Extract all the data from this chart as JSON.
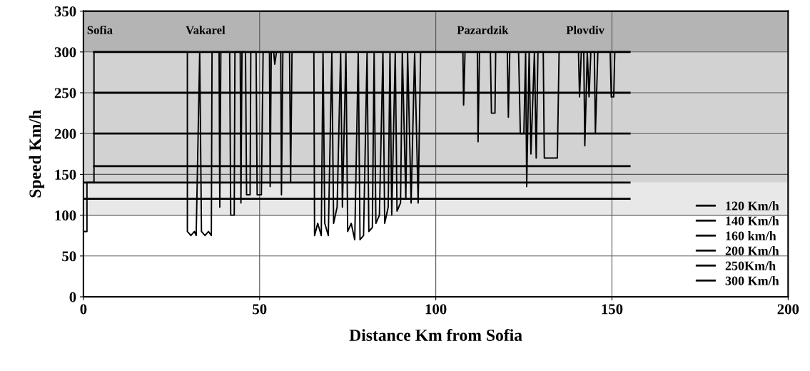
{
  "chart_data": {
    "type": "line",
    "xlabel": "Distance Km from Sofia",
    "ylabel": "Speed Km/h",
    "xlim": [
      0,
      200
    ],
    "xticks": [
      0,
      50,
      100,
      150,
      200
    ],
    "ylim": [
      0,
      350
    ],
    "yticks": [
      0,
      50,
      100,
      150,
      200,
      250,
      300,
      350
    ],
    "grid": true,
    "legend": "bottom right",
    "bands": [
      {
        "axis": "y",
        "from": 300,
        "to": 350,
        "color": "#b4b4b4"
      },
      {
        "axis": "y",
        "from": 140,
        "to": 300,
        "color": "#d2d2d2"
      },
      {
        "axis": "y",
        "from": 100,
        "to": 140,
        "color": "#e8e8e8"
      }
    ],
    "annotations": [
      "Sofia",
      "Vakarel",
      "Pazardzik",
      "Plovdiv"
    ],
    "series": [
      {
        "name": "120 Km/h",
        "color": "#000000",
        "x": [
          0,
          155
        ],
        "values": [
          120,
          120
        ]
      },
      {
        "name": "140 Km/h",
        "color": "#000000",
        "x": [
          0,
          155
        ],
        "values": [
          140,
          140
        ]
      },
      {
        "name": "160 km/h",
        "color": "#000000",
        "x": [
          3,
          155
        ],
        "values": [
          160,
          160
        ]
      },
      {
        "name": "200 Km/h",
        "color": "#000000",
        "x": [
          3,
          155
        ],
        "values": [
          200,
          200
        ]
      },
      {
        "name": "250Km/h",
        "color": "#000000",
        "x": [
          3,
          155
        ],
        "values": [
          250,
          250
        ]
      },
      {
        "name": "300 Km/h",
        "color": "#000000",
        "x": [
          3,
          155
        ],
        "values": [
          300,
          300
        ]
      },
      {
        "color": "#000000",
        "x": [
          0,
          0,
          1,
          1,
          3,
          3,
          29.5,
          29.5,
          30.5,
          31.5,
          32,
          33,
          33.5,
          34.5,
          35.5,
          36.3,
          36.5,
          38.5,
          38.7,
          39,
          41.5,
          41.8,
          42.8,
          43,
          44.5,
          44.7,
          45,
          46,
          46.3,
          47.3,
          47.5,
          49,
          49.3,
          50.5,
          51,
          52.8,
          53,
          53.3,
          54,
          54.3,
          54.8,
          56,
          56.2,
          56.6,
          58.5,
          58.8,
          59.2,
          65.4,
          65.6,
          66.5,
          67.5,
          68,
          68.5,
          69.5,
          70.5,
          71,
          72,
          73,
          73.5,
          74.5,
          75,
          76,
          77,
          78,
          78.5,
          79.5,
          80.5,
          81,
          82,
          82.5,
          83,
          84,
          85,
          85.5,
          86.5,
          87,
          87.5,
          88.5,
          89,
          90,
          90.5,
          91.5,
          92,
          93,
          94,
          95,
          95.7,
          107.7,
          107.9,
          108.3,
          111.8,
          112,
          112.4,
          115.5,
          115.8,
          116.8,
          117,
          120.3,
          120.6,
          121,
          123.5,
          124,
          125,
          125.5,
          125.8,
          126.5,
          127,
          128,
          128.5,
          129,
          130.5,
          130.8,
          134.5,
          135,
          140.5,
          140.8,
          141.3,
          142,
          142.3,
          143,
          143.5,
          144,
          145,
          145.3,
          146,
          149.5,
          149.8,
          150.5,
          150.8,
          155
        ],
        "values": [
          0,
          80,
          80,
          140,
          140,
          300,
          300,
          80,
          75,
          80,
          75,
          300,
          80,
          75,
          80,
          75,
          300,
          300,
          110,
          300,
          300,
          100,
          100,
          300,
          300,
          115,
          300,
          300,
          125,
          125,
          300,
          300,
          125,
          125,
          300,
          300,
          135,
          300,
          300,
          285,
          300,
          300,
          125,
          300,
          300,
          140,
          300,
          300,
          75,
          90,
          75,
          300,
          90,
          75,
          300,
          90,
          110,
          300,
          110,
          300,
          80,
          90,
          70,
          300,
          70,
          75,
          300,
          80,
          85,
          300,
          90,
          100,
          300,
          90,
          110,
          300,
          100,
          300,
          105,
          115,
          300,
          120,
          300,
          115,
          300,
          115,
          300,
          300,
          235,
          300,
          300,
          190,
          300,
          300,
          225,
          225,
          300,
          300,
          220,
          300,
          300,
          200,
          200,
          300,
          135,
          300,
          175,
          300,
          170,
          300,
          300,
          170,
          170,
          300,
          300,
          245,
          300,
          300,
          185,
          300,
          245,
          300,
          300,
          200,
          300,
          300,
          245,
          245,
          300,
          300
        ]
      }
    ]
  }
}
